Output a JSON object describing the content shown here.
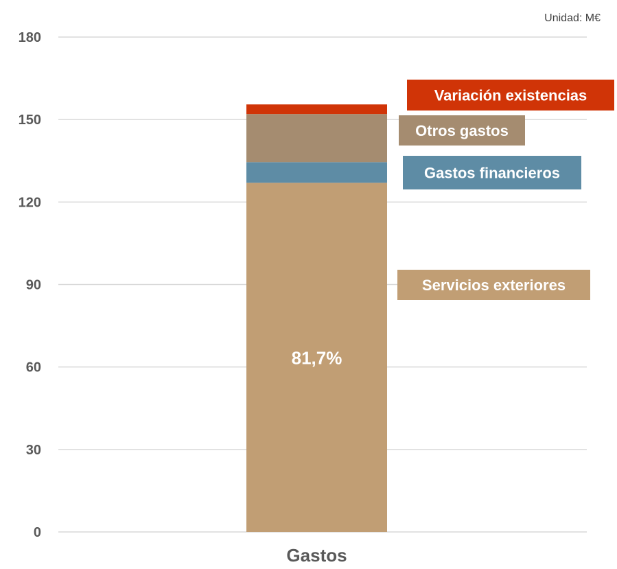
{
  "unit_label": "Unidad: M€",
  "chart_data": {
    "type": "bar",
    "stacked": true,
    "categories": [
      "Gastos"
    ],
    "ylim": [
      0,
      180
    ],
    "yticks": [
      0,
      30,
      60,
      90,
      120,
      150,
      180
    ],
    "grid": true,
    "series": [
      {
        "name": "Servicios exteriores",
        "values": [
          127
        ],
        "color": "#C19E74",
        "data_label": "81,7%"
      },
      {
        "name": "Gastos financieros",
        "values": [
          7.5
        ],
        "color": "#5E8CA5"
      },
      {
        "name": "Otros gastos",
        "values": [
          17.5
        ],
        "color": "#A58C70"
      },
      {
        "name": "Variación existencias",
        "values": [
          3.5
        ],
        "color": "#D03407"
      }
    ]
  }
}
